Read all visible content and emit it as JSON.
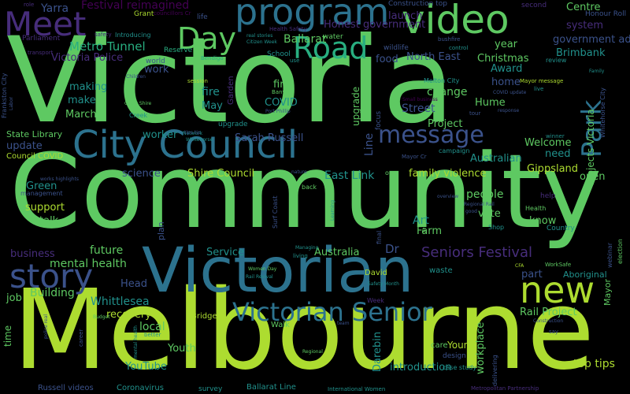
{
  "colors": {
    "background": "#000000",
    "palette": [
      "#440154",
      "#472d7b",
      "#3b528b",
      "#2c728e",
      "#21918c",
      "#28ae80",
      "#5ec962",
      "#addc30",
      "#fde725"
    ]
  },
  "words": {
    "victoria": "Victoria",
    "community": "Community",
    "melbourne": "Melbourne",
    "victorian": "Victorian",
    "city_council": "City Council",
    "video": "video",
    "program": "program",
    "meet": "Meet",
    "day": "Day",
    "road": "Road",
    "new": "new",
    "story": "story",
    "victorian_senior": "Victorian Senior",
    "message": "message",
    "park": "Park",
    "seniors_festival": "Seniors Festival",
    "festival_reimagined": "Festival reimagined",
    "yarra": "Yarra",
    "metro_tunnel": "Metro Tunnel",
    "victoria_police": "Victoria Police",
    "ballarat": "Ballarat",
    "honest_government": "Honest government",
    "launch": "launch",
    "system": "system",
    "centre": "Centre",
    "government_ad": "government ad",
    "brimbank": "Brimbank",
    "north_east": "North East",
    "christmas": "Christmas",
    "award": "Award",
    "home": "home",
    "year": "year",
    "food": "food",
    "work": "work",
    "making": "making",
    "make": "make",
    "march": "March",
    "fire": "fire",
    "may": "May",
    "first": "first",
    "covid": "COVID",
    "change": "change",
    "street": "Street",
    "project": "Project",
    "hume": "Hume",
    "welcome": "Welcome",
    "need": "need",
    "australian": "Australian",
    "gippsland": "Gippsland",
    "open": "open",
    "family_violence": "family violence",
    "east_link": "East Link",
    "shire_council": "Shire Council",
    "sarah_russell": "Sarah Russell",
    "worker": "worker",
    "science": "science",
    "update": "update",
    "state_library": "State Library",
    "council_covid": "Council COVID",
    "green": "Green",
    "support": "support",
    "talk": "talk",
    "people": "people",
    "vote": "vote",
    "know": "know",
    "art": "Art",
    "farm": "Farm",
    "australia": "Australia",
    "service": "Service",
    "dr": "Dr",
    "business": "business",
    "mental_health": "mental health",
    "future": "future",
    "part": "part",
    "aboriginal": "Aboriginal",
    "mayor": "Mayor",
    "head": "Head",
    "whittlesea": "Whittlesea",
    "recovery": "recovery",
    "local": "local",
    "building": "Building",
    "job": "job",
    "rail_project": "Rail Project",
    "youth": "Youth",
    "young": "Young",
    "youtube": "YouTube",
    "introduction": "introduction",
    "darebin": "Darebin",
    "workplace": "workplace",
    "top_tips": "top tips",
    "time": "time",
    "waste": "waste",
    "upgrade": "upgrade",
    "line": "Line",
    "plan": "plan",
    "russell_videos": "Russell videos",
    "coronavirus": "Coronavirus",
    "ballarat_line": "Ballarat Line",
    "survey": "survey",
    "construction_top": "Construction top",
    "second": "second",
    "honour_roll": "Honour Roll",
    "grant": "Grant",
    "health_safety": "Health Safety",
    "reserve": "Reserve",
    "world": "world",
    "bendigo": "Bendigo",
    "school": "School",
    "water": "water",
    "wildlife": "wildlife",
    "parliament": "Parliament",
    "role": "role",
    "session": "session",
    "garden": "Garden",
    "banyule": "Banyule",
    "focus": "focus",
    "melton_city": "Melton City",
    "review": "review",
    "live": "live",
    "creek": "Creek",
    "coast_shire": "Coast Shire",
    "surf_coast": "Surf Coast",
    "david": "David",
    "bridge": "Bridge",
    "walk": "Walk",
    "care": "care",
    "design": "design",
    "case_study": "case study",
    "regional": "Regional",
    "safety_month": "Safety Month",
    "frankston": "Frankston",
    "health": "Health",
    "shop": "Shop",
    "country": "Country",
    "help": "help",
    "delivering": "delivering",
    "webinar": "webinar",
    "election": "election",
    "whitehorse_city": "Whitehorse City",
    "projects_victoria": "Projects Victoria",
    "mayor_message": "Mayor message",
    "women_day": "Women Day",
    "rail_revival": "Rail Revival",
    "final": "final",
    "cfa": "CFA",
    "worksafe": "WorkSafe",
    "learning": "Learning",
    "international_women": "International Women",
    "metropolitan_partnership": "Metropolitan Partnership",
    "frankston_city": "Frankston City",
    "labor": "Labor",
    "transport": "transport",
    "introducing": "Introducing",
    "safety": "safety",
    "children": "Children",
    "tips_tip": "tips tip",
    "network": "Network",
    "whitehorse": "Whitehorse",
    "police_real": "police real",
    "budget": "Budget",
    "career": "career",
    "better": "better",
    "winner": "winner",
    "campaign": "campaign",
    "mayor_cr": "Mayor Cr",
    "nature": "nature",
    "back": "back",
    "one": "one",
    "overview": "overview",
    "regional_rail": "Regional Rail",
    "good": "good",
    "managing": "Managing",
    "living": "living",
    "life": "life",
    "councillors_cr": "councillors Cr",
    "use": "use",
    "control": "control",
    "bushfire": "bushfire",
    "family": "Family",
    "small_business": "Small business",
    "response": "response",
    "covid_update": "COVID update",
    "tour": "tour",
    "port_phillip": "Port Phillip",
    "real_stories": "real stories",
    "citizen_week": "Citizen Week",
    "works_highlights": "works highlights",
    "management": "management",
    "construction": "Construction",
    "say": "say",
    "week": "Week",
    "team": "team"
  }
}
